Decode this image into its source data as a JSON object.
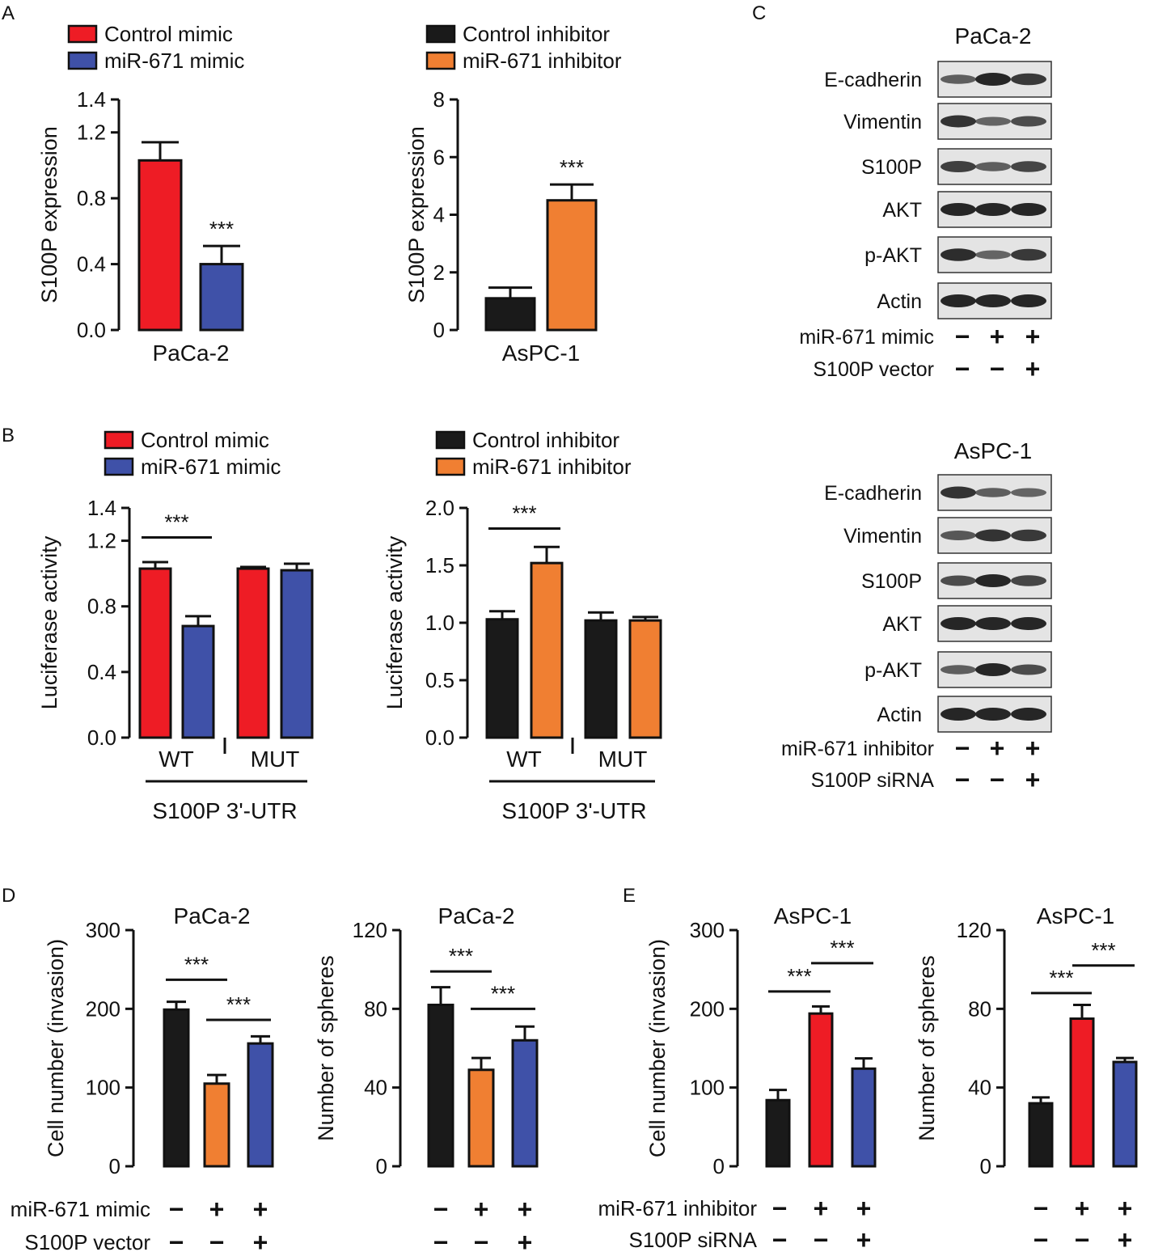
{
  "colors": {
    "red": "#ee1c25",
    "blue": "#3f51a8",
    "black": "#1a1a1a",
    "orange": "#f07f32",
    "blot_bg": "#e4e4e4",
    "blot_band": "#262626"
  },
  "panel_letters": {
    "A": "A",
    "B": "B",
    "C": "C",
    "D": "D",
    "E": "E"
  },
  "symbols": {
    "stars": "***",
    "plus": "+",
    "minus": "−"
  },
  "chart_data": [
    {
      "id": "A1",
      "type": "bar",
      "ylabel": "S100P expression",
      "xlabel": "PaCa-2",
      "ylim": [
        0,
        1.4
      ],
      "ticks": [
        "0.0",
        "0.4",
        "0.8",
        "1.2",
        "1.4"
      ],
      "tick_values": [
        0,
        0.4,
        0.8,
        1.2,
        1.4
      ],
      "legend": [
        {
          "name": "Control mimic",
          "color": "red"
        },
        {
          "name": "miR-671 mimic",
          "color": "blue"
        }
      ],
      "bars": [
        {
          "label": "Control mimic",
          "value": 1.03,
          "err": 0.11,
          "color": "red"
        },
        {
          "label": "miR-671 mimic",
          "value": 0.4,
          "err": 0.11,
          "color": "blue",
          "sig": "***"
        }
      ]
    },
    {
      "id": "A2",
      "type": "bar",
      "ylabel": "S100P expression",
      "xlabel": "AsPC-1",
      "ylim": [
        0,
        8
      ],
      "ticks": [
        "0",
        "2",
        "4",
        "6",
        "8"
      ],
      "tick_values": [
        0,
        2,
        4,
        6,
        8
      ],
      "legend": [
        {
          "name": "Control inhibitor",
          "color": "black"
        },
        {
          "name": "miR-671 inhibitor",
          "color": "orange"
        }
      ],
      "bars": [
        {
          "label": "Control inhibitor",
          "value": 1.1,
          "err": 0.37,
          "color": "black"
        },
        {
          "label": "miR-671 inhibitor",
          "value": 4.5,
          "err": 0.55,
          "color": "orange",
          "sig": "***"
        }
      ]
    },
    {
      "id": "B1",
      "type": "bar",
      "ylabel": "Luciferase activity",
      "xlabel": "S100P 3'-UTR",
      "groups": [
        "WT",
        "MUT"
      ],
      "ylim": [
        0,
        1.4
      ],
      "ticks": [
        "0.0",
        "0.4",
        "0.8",
        "1.2",
        "1.4"
      ],
      "tick_values": [
        0,
        0.4,
        0.8,
        1.2,
        1.4
      ],
      "legend": [
        {
          "name": "Control mimic",
          "color": "red"
        },
        {
          "name": "miR-671 mimic",
          "color": "blue"
        }
      ],
      "bars": [
        {
          "group": "WT",
          "value": 1.03,
          "err": 0.04,
          "color": "red"
        },
        {
          "group": "WT",
          "value": 0.68,
          "err": 0.06,
          "color": "blue"
        },
        {
          "group": "MUT",
          "value": 1.03,
          "err": 0.01,
          "color": "red"
        },
        {
          "group": "MUT",
          "value": 1.02,
          "err": 0.04,
          "color": "blue"
        }
      ],
      "sig": [
        {
          "from": 0,
          "to": 1,
          "label": "***",
          "value": 1.22
        }
      ]
    },
    {
      "id": "B2",
      "type": "bar",
      "ylabel": "Luciferase activity",
      "xlabel": "S100P 3'-UTR",
      "groups": [
        "WT",
        "MUT"
      ],
      "ylim": [
        0,
        2.0
      ],
      "ticks": [
        "0.0",
        "0.5",
        "1.0",
        "1.5",
        "2.0"
      ],
      "tick_values": [
        0,
        0.5,
        1.0,
        1.5,
        2.0
      ],
      "legend": [
        {
          "name": "Control inhibitor",
          "color": "black"
        },
        {
          "name": "miR-671 inhibitor",
          "color": "orange"
        }
      ],
      "bars": [
        {
          "group": "WT",
          "value": 1.03,
          "err": 0.07,
          "color": "black"
        },
        {
          "group": "WT",
          "value": 1.52,
          "err": 0.14,
          "color": "orange"
        },
        {
          "group": "MUT",
          "value": 1.02,
          "err": 0.07,
          "color": "black"
        },
        {
          "group": "MUT",
          "value": 1.02,
          "err": 0.03,
          "color": "orange"
        }
      ],
      "sig": [
        {
          "from": 0,
          "to": 1,
          "label": "***",
          "value": 1.82
        }
      ]
    },
    {
      "id": "D1",
      "type": "bar",
      "title": "PaCa-2",
      "ylabel": "Cell number (invasion)",
      "ylim": [
        0,
        300
      ],
      "ticks": [
        "0",
        "100",
        "200",
        "300"
      ],
      "tick_values": [
        0,
        100,
        200,
        300
      ],
      "bars": [
        {
          "value": 199,
          "err": 10,
          "color": "black"
        },
        {
          "value": 105,
          "err": 11,
          "color": "orange"
        },
        {
          "value": 156,
          "err": 9,
          "color": "blue"
        }
      ],
      "sig": [
        {
          "from": 0,
          "to": 1,
          "label": "***",
          "value": 237
        },
        {
          "from": 1,
          "to": 2,
          "label": "***",
          "value": 186
        }
      ]
    },
    {
      "id": "D2",
      "type": "bar",
      "title": "PaCa-2",
      "ylabel": "Number of spheres",
      "ylim": [
        0,
        120
      ],
      "ticks": [
        "0",
        "40",
        "80",
        "120"
      ],
      "tick_values": [
        0,
        40,
        80,
        120
      ],
      "bars": [
        {
          "value": 82,
          "err": 9,
          "color": "black"
        },
        {
          "value": 49,
          "err": 6,
          "color": "orange"
        },
        {
          "value": 64,
          "err": 7,
          "color": "blue"
        }
      ],
      "sig": [
        {
          "from": 0,
          "to": 1,
          "label": "***",
          "value": 99
        },
        {
          "from": 1,
          "to": 2,
          "label": "***",
          "value": 80
        }
      ]
    },
    {
      "id": "E1",
      "type": "bar",
      "title": "AsPC-1",
      "ylabel": "Cell number (invasion)",
      "ylim": [
        0,
        300
      ],
      "ticks": [
        "0",
        "100",
        "200",
        "300"
      ],
      "tick_values": [
        0,
        100,
        200,
        300
      ],
      "bars": [
        {
          "value": 84,
          "err": 13,
          "color": "black"
        },
        {
          "value": 194,
          "err": 9,
          "color": "red"
        },
        {
          "value": 124,
          "err": 13,
          "color": "blue"
        }
      ],
      "sig": [
        {
          "from": 0,
          "to": 1,
          "label": "***",
          "value": 222
        },
        {
          "from": 1,
          "to": 2,
          "label": "***",
          "value": 258
        }
      ]
    },
    {
      "id": "E2",
      "type": "bar",
      "title": "AsPC-1",
      "ylabel": "Number of spheres",
      "ylim": [
        0,
        120
      ],
      "ticks": [
        "0",
        "40",
        "80",
        "120"
      ],
      "tick_values": [
        0,
        40,
        80,
        120
      ],
      "bars": [
        {
          "value": 32,
          "err": 3,
          "color": "black"
        },
        {
          "value": 75,
          "err": 7,
          "color": "red"
        },
        {
          "value": 53,
          "err": 2,
          "color": "blue"
        }
      ],
      "sig": [
        {
          "from": 0,
          "to": 1,
          "label": "***",
          "value": 88
        },
        {
          "from": 1,
          "to": 2,
          "label": "***",
          "value": 102
        }
      ]
    }
  ],
  "conditions_D": [
    {
      "label": "miR-671 mimic",
      "signs": [
        "−",
        "+",
        "+"
      ]
    },
    {
      "label": "S100P vector",
      "signs": [
        "−",
        "−",
        "+"
      ]
    }
  ],
  "conditions_E": [
    {
      "label": "miR-671 inhibitor",
      "signs": [
        "−",
        "+",
        "+"
      ]
    },
    {
      "label": "S100P siRNA",
      "signs": [
        "−",
        "−",
        "+"
      ]
    }
  ],
  "blots": [
    {
      "title": "PaCa-2",
      "rows": [
        {
          "label": "E-cadherin",
          "intensity": [
            0.55,
            1.0,
            0.85
          ]
        },
        {
          "label": "Vimentin",
          "intensity": [
            0.9,
            0.5,
            0.7
          ]
        },
        {
          "label": "S100P",
          "intensity": [
            0.8,
            0.55,
            0.75
          ]
        },
        {
          "label": "AKT",
          "intensity": [
            1.0,
            1.0,
            1.0
          ]
        },
        {
          "label": "p-AKT",
          "intensity": [
            0.95,
            0.5,
            0.85
          ]
        },
        {
          "label": "Actin",
          "intensity": [
            1.0,
            1.0,
            1.0
          ]
        }
      ],
      "conditions": [
        {
          "label": "miR-671 mimic",
          "signs": [
            "−",
            "+",
            "+"
          ]
        },
        {
          "label": "S100P vector",
          "signs": [
            "−",
            "−",
            "+"
          ]
        }
      ]
    },
    {
      "title": "AsPC-1",
      "rows": [
        {
          "label": "E-cadherin",
          "intensity": [
            0.9,
            0.55,
            0.5
          ]
        },
        {
          "label": "Vimentin",
          "intensity": [
            0.6,
            0.9,
            0.85
          ]
        },
        {
          "label": "S100P",
          "intensity": [
            0.7,
            1.0,
            0.75
          ]
        },
        {
          "label": "AKT",
          "intensity": [
            1.0,
            1.0,
            1.0
          ]
        },
        {
          "label": "p-AKT",
          "intensity": [
            0.55,
            1.0,
            0.7
          ]
        },
        {
          "label": "Actin",
          "intensity": [
            1.0,
            1.0,
            1.0
          ]
        }
      ],
      "conditions": [
        {
          "label": "miR-671 inhibitor",
          "signs": [
            "−",
            "+",
            "+"
          ]
        },
        {
          "label": "S100P siRNA",
          "signs": [
            "−",
            "−",
            "+"
          ]
        }
      ]
    }
  ]
}
